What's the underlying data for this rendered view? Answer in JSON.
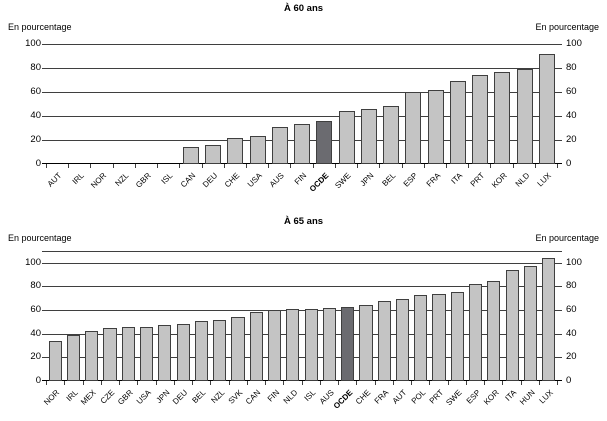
{
  "colors": {
    "bar_fill": "#c4c4c4",
    "bar_border": "#3f3f3f",
    "highlight_fill": "#6b6b70",
    "gridline": "#3f3f3f",
    "axis_line": "#000000",
    "background": "#ffffff",
    "text": "#000000"
  },
  "chart_data": [
    {
      "type": "bar",
      "title": "À 60 ans",
      "unit_label_left": "En pourcentage",
      "unit_label_right": "En pourcentage",
      "categories": [
        "AUT",
        "IRL",
        "NOR",
        "NZL",
        "GBR",
        "ISL",
        "CAN",
        "DEU",
        "CHE",
        "USA",
        "AUS",
        "FIN",
        "OCDE",
        "SWE",
        "JPN",
        "BEL",
        "ESP",
        "FRA",
        "ITA",
        "PRT",
        "KOR",
        "NLD",
        "LUX"
      ],
      "values": [
        0,
        0,
        0,
        0,
        0,
        0,
        14,
        16,
        22,
        23,
        31,
        33,
        36,
        44,
        46,
        48,
        60,
        62,
        69,
        74,
        77,
        79,
        92
      ],
      "highlight_category": "OCDE",
      "yticks": [
        0,
        20,
        40,
        60,
        80,
        100
      ],
      "ylim": [
        0,
        100
      ],
      "grid": true,
      "legend_position": "none",
      "xlabel_rotation": 45
    },
    {
      "type": "bar",
      "title": "À 65 ans",
      "unit_label_left": "En pourcentage",
      "unit_label_right": "En pourcentage",
      "categories": [
        "NOR",
        "IRL",
        "MEX",
        "CZE",
        "GBR",
        "USA",
        "JPN",
        "DEU",
        "BEL",
        "NZL",
        "SVK",
        "CAN",
        "FIN",
        "NLD",
        "ISL",
        "AUS",
        "OCDE",
        "CHE",
        "FRA",
        "AUT",
        "POL",
        "PRT",
        "SWE",
        "ESP",
        "KOR",
        "ITA",
        "HUN",
        "LUX"
      ],
      "values": [
        34,
        39,
        42,
        45,
        46,
        46,
        47,
        48,
        51,
        52,
        54,
        58,
        60,
        61,
        61,
        62,
        63,
        64,
        68,
        69,
        73,
        74,
        75,
        82,
        85,
        94,
        97,
        104
      ],
      "highlight_category": "OCDE",
      "yticks": [
        0,
        20,
        40,
        60,
        80,
        100
      ],
      "ylim": [
        0,
        110
      ],
      "grid": true,
      "legend_position": "none",
      "xlabel_rotation": 45
    }
  ]
}
